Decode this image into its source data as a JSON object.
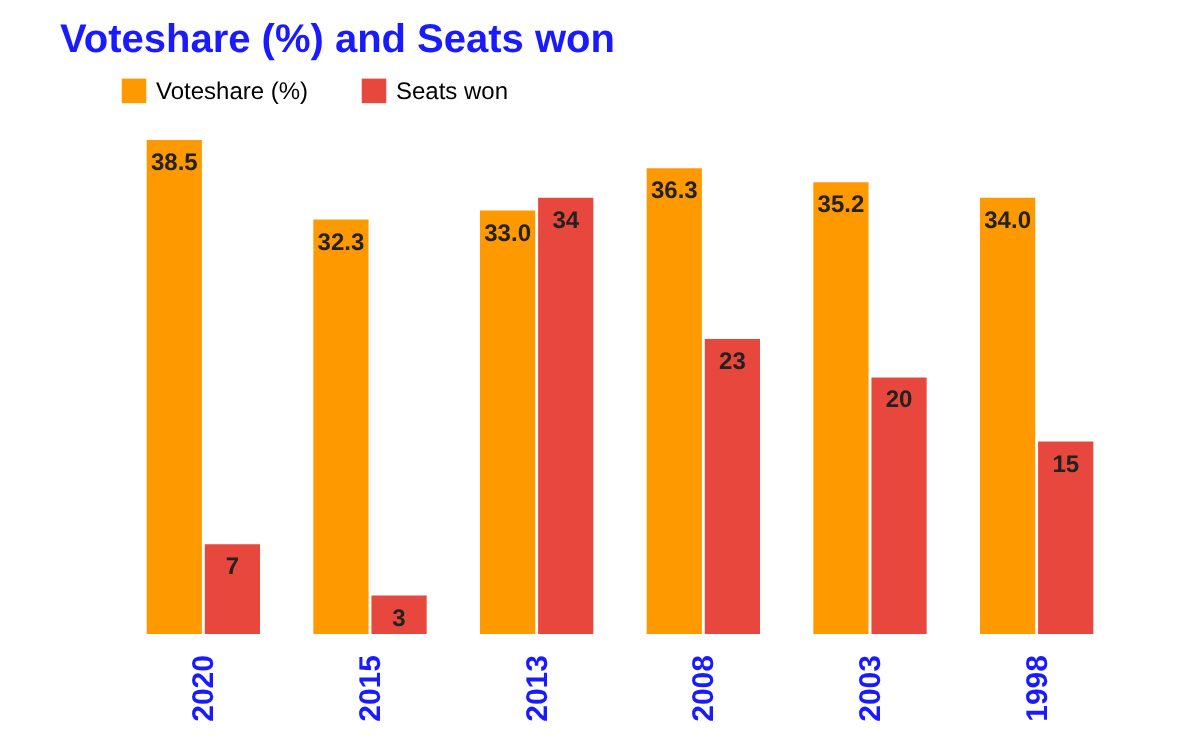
{
  "chart_data": {
    "type": "bar",
    "title": "Voteshare (%) and Seats won",
    "categories": [
      "2020",
      "2015",
      "2013",
      "2008",
      "2003",
      "1998"
    ],
    "series": [
      {
        "name": "Voteshare (%)",
        "color": "#ff9900",
        "values": [
          38.5,
          32.3,
          33.0,
          36.3,
          35.2,
          34.0
        ],
        "value_labels": [
          "38.5",
          "32.3",
          "33.0",
          "36.3",
          "35.2",
          "34.0"
        ]
      },
      {
        "name": "Seats won",
        "color": "#e8473d",
        "values": [
          7,
          3,
          34,
          23,
          20,
          15
        ],
        "value_labels": [
          "7",
          "3",
          "34",
          "23",
          "20",
          "15"
        ]
      }
    ],
    "legend": "top",
    "grid": false
  }
}
